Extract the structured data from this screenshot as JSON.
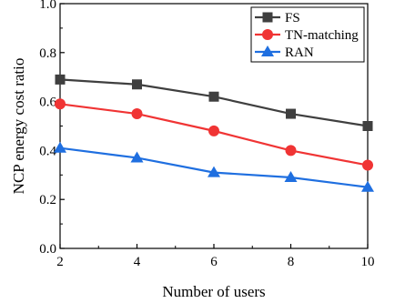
{
  "chart_data": {
    "type": "line",
    "xlabel": "Number of users",
    "ylabel": "NCP energy cost ratio",
    "x": [
      2,
      4,
      6,
      8,
      10
    ],
    "xlim": [
      2,
      10
    ],
    "ylim": [
      0.0,
      1.0
    ],
    "xticks": [
      "2",
      "4",
      "6",
      "8",
      "10"
    ],
    "yticks": [
      "0.0",
      "0.2",
      "0.4",
      "0.6",
      "0.8",
      "1.0"
    ],
    "grid": false,
    "legend_position": "top-right",
    "series": [
      {
        "name": "FS",
        "marker": "square",
        "color": "#3f3f3f",
        "values": [
          0.69,
          0.67,
          0.62,
          0.55,
          0.5
        ]
      },
      {
        "name": "TN-matching",
        "marker": "circle",
        "color": "#f03434",
        "values": [
          0.59,
          0.55,
          0.48,
          0.4,
          0.34
        ]
      },
      {
        "name": "RAN",
        "marker": "triangle",
        "color": "#1f6fe0",
        "values": [
          0.41,
          0.37,
          0.31,
          0.29,
          0.25
        ]
      }
    ]
  }
}
